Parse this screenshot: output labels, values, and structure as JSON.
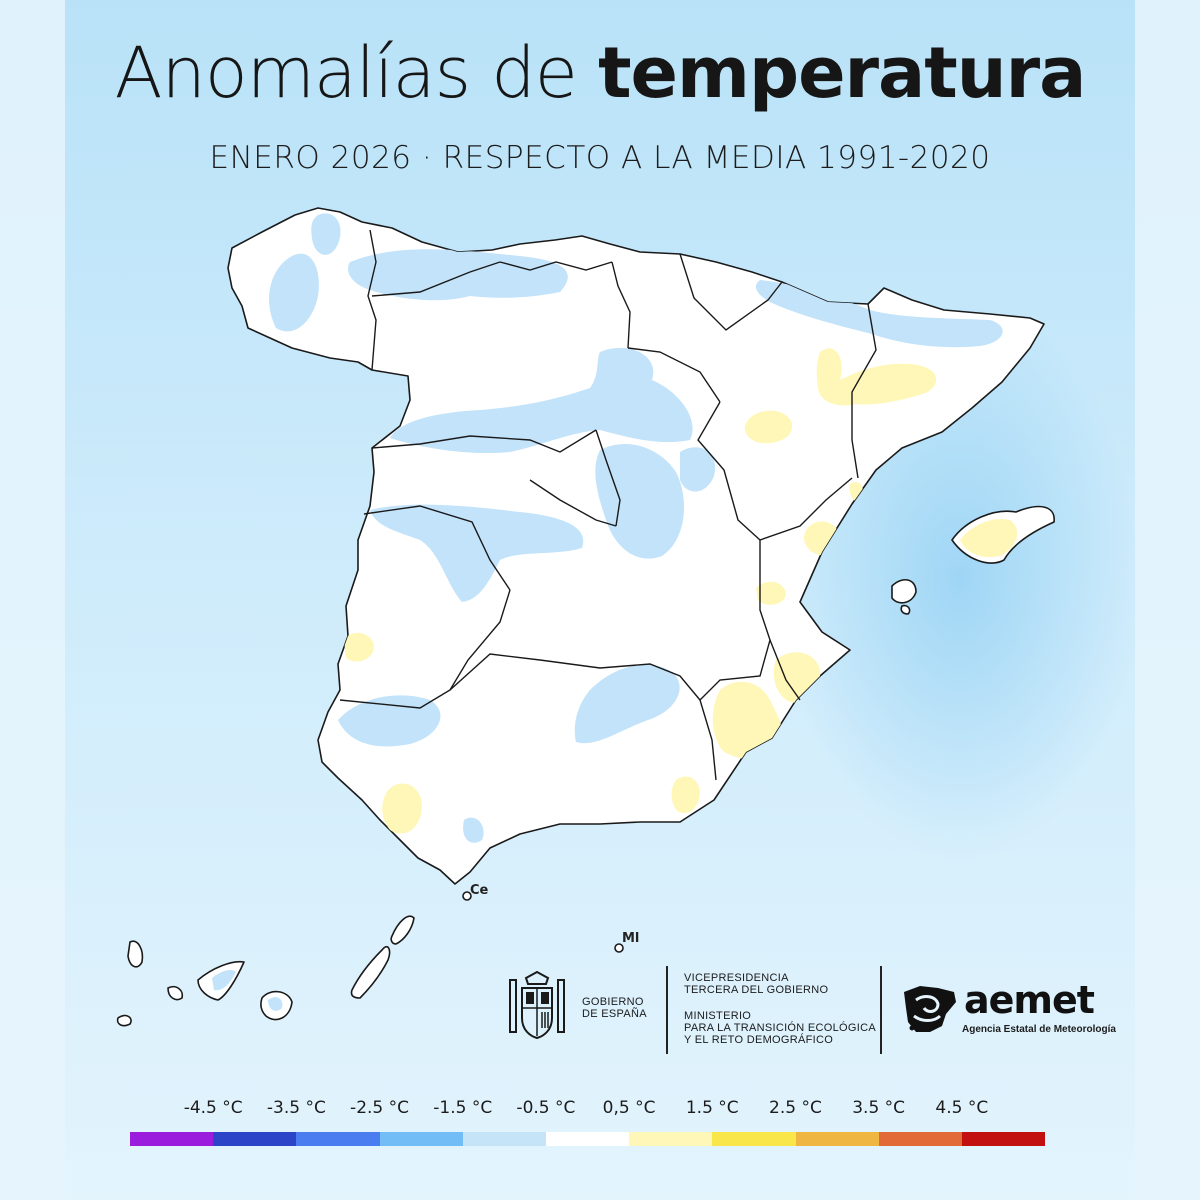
{
  "header": {
    "title_light": "Anomalías de",
    "title_bold": "temperatura",
    "subtitle": "ENERO 2026 · RESPECTO A LA MEDIA 1991-2020"
  },
  "map": {
    "labels": {
      "ceuta": "Ce",
      "melilla": "Ml"
    },
    "colors": {
      "above_average": "#fff7b8",
      "below_average": "#c2e3fa",
      "normal": "#ffffff"
    }
  },
  "logos": {
    "gobierno": [
      "GOBIERNO",
      "DE ESPAÑA"
    ],
    "vicepresidencia": [
      "VICEPRESIDENCIA",
      "TERCERA DEL GOBIERNO"
    ],
    "ministerio": [
      "MINISTERIO",
      "PARA LA TRANSICIÓN ECOLÓGICA",
      "Y EL RETO DEMOGRÁFICO"
    ],
    "aemet_word": "aemet",
    "aemet_sub": "Agencia Estatal de Meteorología"
  },
  "legend": {
    "labels": [
      "-4.5 °C",
      "-3.5 °C",
      "-2.5 °C",
      "-1.5 °C",
      "-0.5 °C",
      "0,5 °C",
      "1.5 °C",
      "2.5 °C",
      "3.5 °C",
      "4.5 °C"
    ],
    "colors": [
      "#9c1cde",
      "#2b44c8",
      "#4a7ef0",
      "#72bdf6",
      "#c6e4f8",
      "#ffffff",
      "#fff7b8",
      "#f9e64a",
      "#efb642",
      "#e26a38",
      "#c20f0f"
    ]
  }
}
